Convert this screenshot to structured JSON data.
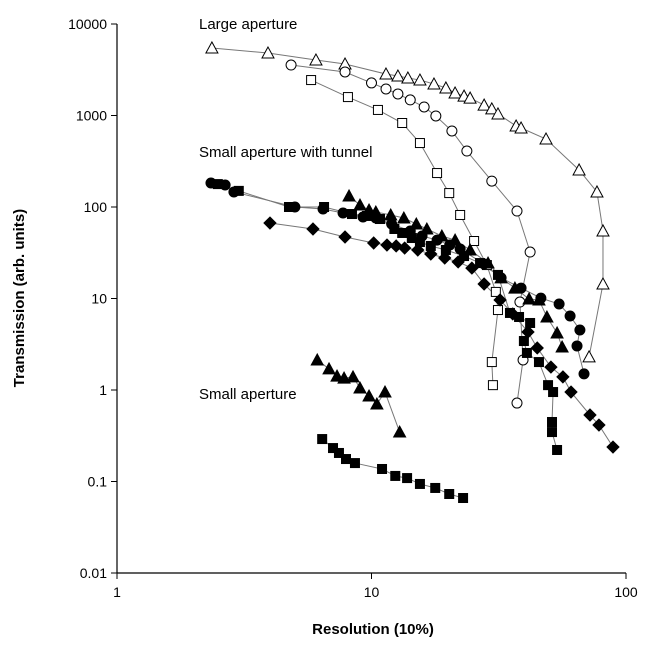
{
  "chart_data": {
    "type": "scatter",
    "x_label": "Resolution (10%)",
    "y_label": "Transmission (arb. units)",
    "xlog": true,
    "ylog": true,
    "xlim": [
      1,
      100
    ],
    "ylim": [
      0.01,
      10000
    ],
    "xticks": [
      1,
      10,
      100
    ],
    "yticks": [
      0.01,
      0.1,
      1,
      10,
      100,
      1000,
      10000
    ],
    "line_color": "#777",
    "annotations": [
      {
        "text": "Large aperture",
        "x": 2.1,
        "y": 10000
      },
      {
        "text": "Small aperture with tunnel",
        "x": 2.1,
        "y": 400
      },
      {
        "text": "Small aperture",
        "x": 2.1,
        "y": 0.9
      }
    ],
    "series": [
      {
        "marker": "triangle",
        "filled": false,
        "color": "#000",
        "x": [
          2.36,
          3.92,
          6.05,
          7.87,
          11.4,
          12.7,
          13.9,
          15.5,
          17.6,
          19.6,
          21.3,
          23.1,
          24.4,
          27.7,
          29.7,
          31.4,
          37.0,
          38.7,
          48.5,
          65.4,
          76.9,
          81.2,
          81.2,
          71.6
        ],
        "values": [
          5470,
          4820,
          4040,
          3650,
          2840,
          2700,
          2570,
          2440,
          2210,
          2000,
          1760,
          1630,
          1550,
          1300,
          1180,
          1040,
          768,
          730,
          553,
          254,
          146,
          54.7,
          14.4,
          2.3
        ]
      },
      {
        "marker": "circle",
        "filled": false,
        "color": "#000",
        "x": [
          4.83,
          7.87,
          10.0,
          11.4,
          12.7,
          14.2,
          16.1,
          17.9,
          20.7,
          23.7,
          29.7,
          37.3,
          42.0,
          38.3,
          39.4,
          37.3
        ],
        "values": [
          3560,
          2990,
          2270,
          1950,
          1720,
          1480,
          1240,
          988,
          677,
          409,
          192,
          90.4,
          32.2,
          9.15,
          2.13,
          0.72
        ]
      },
      {
        "marker": "square",
        "filled": false,
        "color": "#000",
        "x": [
          5.79,
          8.08,
          10.6,
          13.2,
          15.5,
          18.1,
          20.2,
          22.3,
          25.3,
          28.4,
          30.8,
          31.4,
          29.7,
          30.0
        ],
        "values": [
          2440,
          1590,
          1150,
          828,
          500,
          235,
          142,
          81.8,
          42.5,
          23.2,
          11.8,
          7.48,
          2.02,
          1.13
        ]
      },
      {
        "marker": "circle",
        "filled": true,
        "color": "#000",
        "x": [
          2.34,
          2.66,
          2.88,
          5.0,
          6.45,
          7.73,
          9.26,
          10.4,
          12.0,
          14.2,
          15.8,
          18.1,
          20.3,
          22.3,
          27.7,
          32.3,
          38.7,
          46.3,
          54.6,
          60.3,
          65.9,
          64.2,
          68.4
        ],
        "values": [
          183,
          174,
          146,
          100,
          95.1,
          85.9,
          77.8,
          75.8,
          65.2,
          54.7,
          48.2,
          43.5,
          38.4,
          34.8,
          23.8,
          16.8,
          13.0,
          10.1,
          8.7,
          6.44,
          4.53,
          3.03,
          1.5
        ]
      },
      {
        "marker": "square",
        "filled": true,
        "color": "#000",
        "x": [
          2.49,
          3.01,
          4.74,
          6.51,
          8.38,
          9.6,
          10.8,
          12.3,
          13.2,
          14.4,
          15.5,
          17.1,
          19.6,
          23.1,
          26.7,
          31.4,
          35.0,
          38.0,
          42.0,
          39.7,
          40.8,
          45.5,
          49.4,
          51.7,
          51.2,
          51.2,
          53.6
        ],
        "values": [
          178,
          150,
          100,
          100,
          83.8,
          79.8,
          73.9,
          57.5,
          52.0,
          45.8,
          41.4,
          37.5,
          33.9,
          29.1,
          24.4,
          18.1,
          6.95,
          6.28,
          5.4,
          3.43,
          2.54,
          2.02,
          1.13,
          0.95,
          0.447,
          0.347,
          0.221
        ]
      },
      {
        "marker": "triangle",
        "filled": true,
        "color": "#000",
        "x": [
          8.16,
          9.01,
          9.78,
          10.4,
          11.9,
          13.4,
          15.0,
          16.5,
          18.9,
          21.3,
          24.4,
          28.7,
          32.3,
          36.6,
          41.6,
          45.5,
          48.9,
          53.6,
          56.1
        ],
        "values": [
          132,
          105,
          92.7,
          88.2,
          81.8,
          75.8,
          65.2,
          57.5,
          48.2,
          43.5,
          33.9,
          24.4,
          16.8,
          13.0,
          9.88,
          9.64,
          6.28,
          4.2,
          2.95
        ]
      },
      {
        "marker": "diamond",
        "filled": true,
        "color": "#000",
        "x": [
          3.99,
          5.89,
          7.87,
          10.2,
          11.5,
          12.5,
          13.5,
          15.2,
          17.1,
          19.4,
          21.9,
          24.8,
          27.7,
          32.0,
          35.9,
          41.2,
          44.8,
          50.7,
          56.5,
          60.8,
          72.2,
          78.3,
          88.9
        ],
        "values": [
          66.8,
          57.5,
          47.0,
          40.4,
          38.4,
          37.5,
          35.6,
          33.9,
          30.6,
          27.7,
          25.1,
          21.5,
          14.4,
          9.64,
          6.78,
          4.31,
          2.88,
          1.78,
          1.39,
          0.95,
          0.533,
          0.414,
          0.238
        ]
      },
      {
        "marker": "triangle",
        "filled": true,
        "color": "#000",
        "x": [
          6.12,
          6.81,
          7.32,
          7.8,
          8.46,
          9.01,
          9.78,
          10.5,
          11.3,
          12.9
        ],
        "values": [
          2.13,
          1.7,
          1.42,
          1.35,
          1.39,
          1.05,
          0.859,
          0.703,
          0.95,
          0.347
        ]
      },
      {
        "marker": "square",
        "filled": true,
        "color": "#000",
        "x": [
          6.4,
          7.06,
          7.45,
          7.94,
          8.61,
          11.0,
          12.4,
          13.8,
          15.5,
          17.8,
          20.2,
          22.9
        ],
        "values": [
          0.291,
          0.232,
          0.205,
          0.176,
          0.159,
          0.137,
          0.115,
          0.109,
          0.094,
          0.085,
          0.073,
          0.066
        ]
      }
    ]
  }
}
